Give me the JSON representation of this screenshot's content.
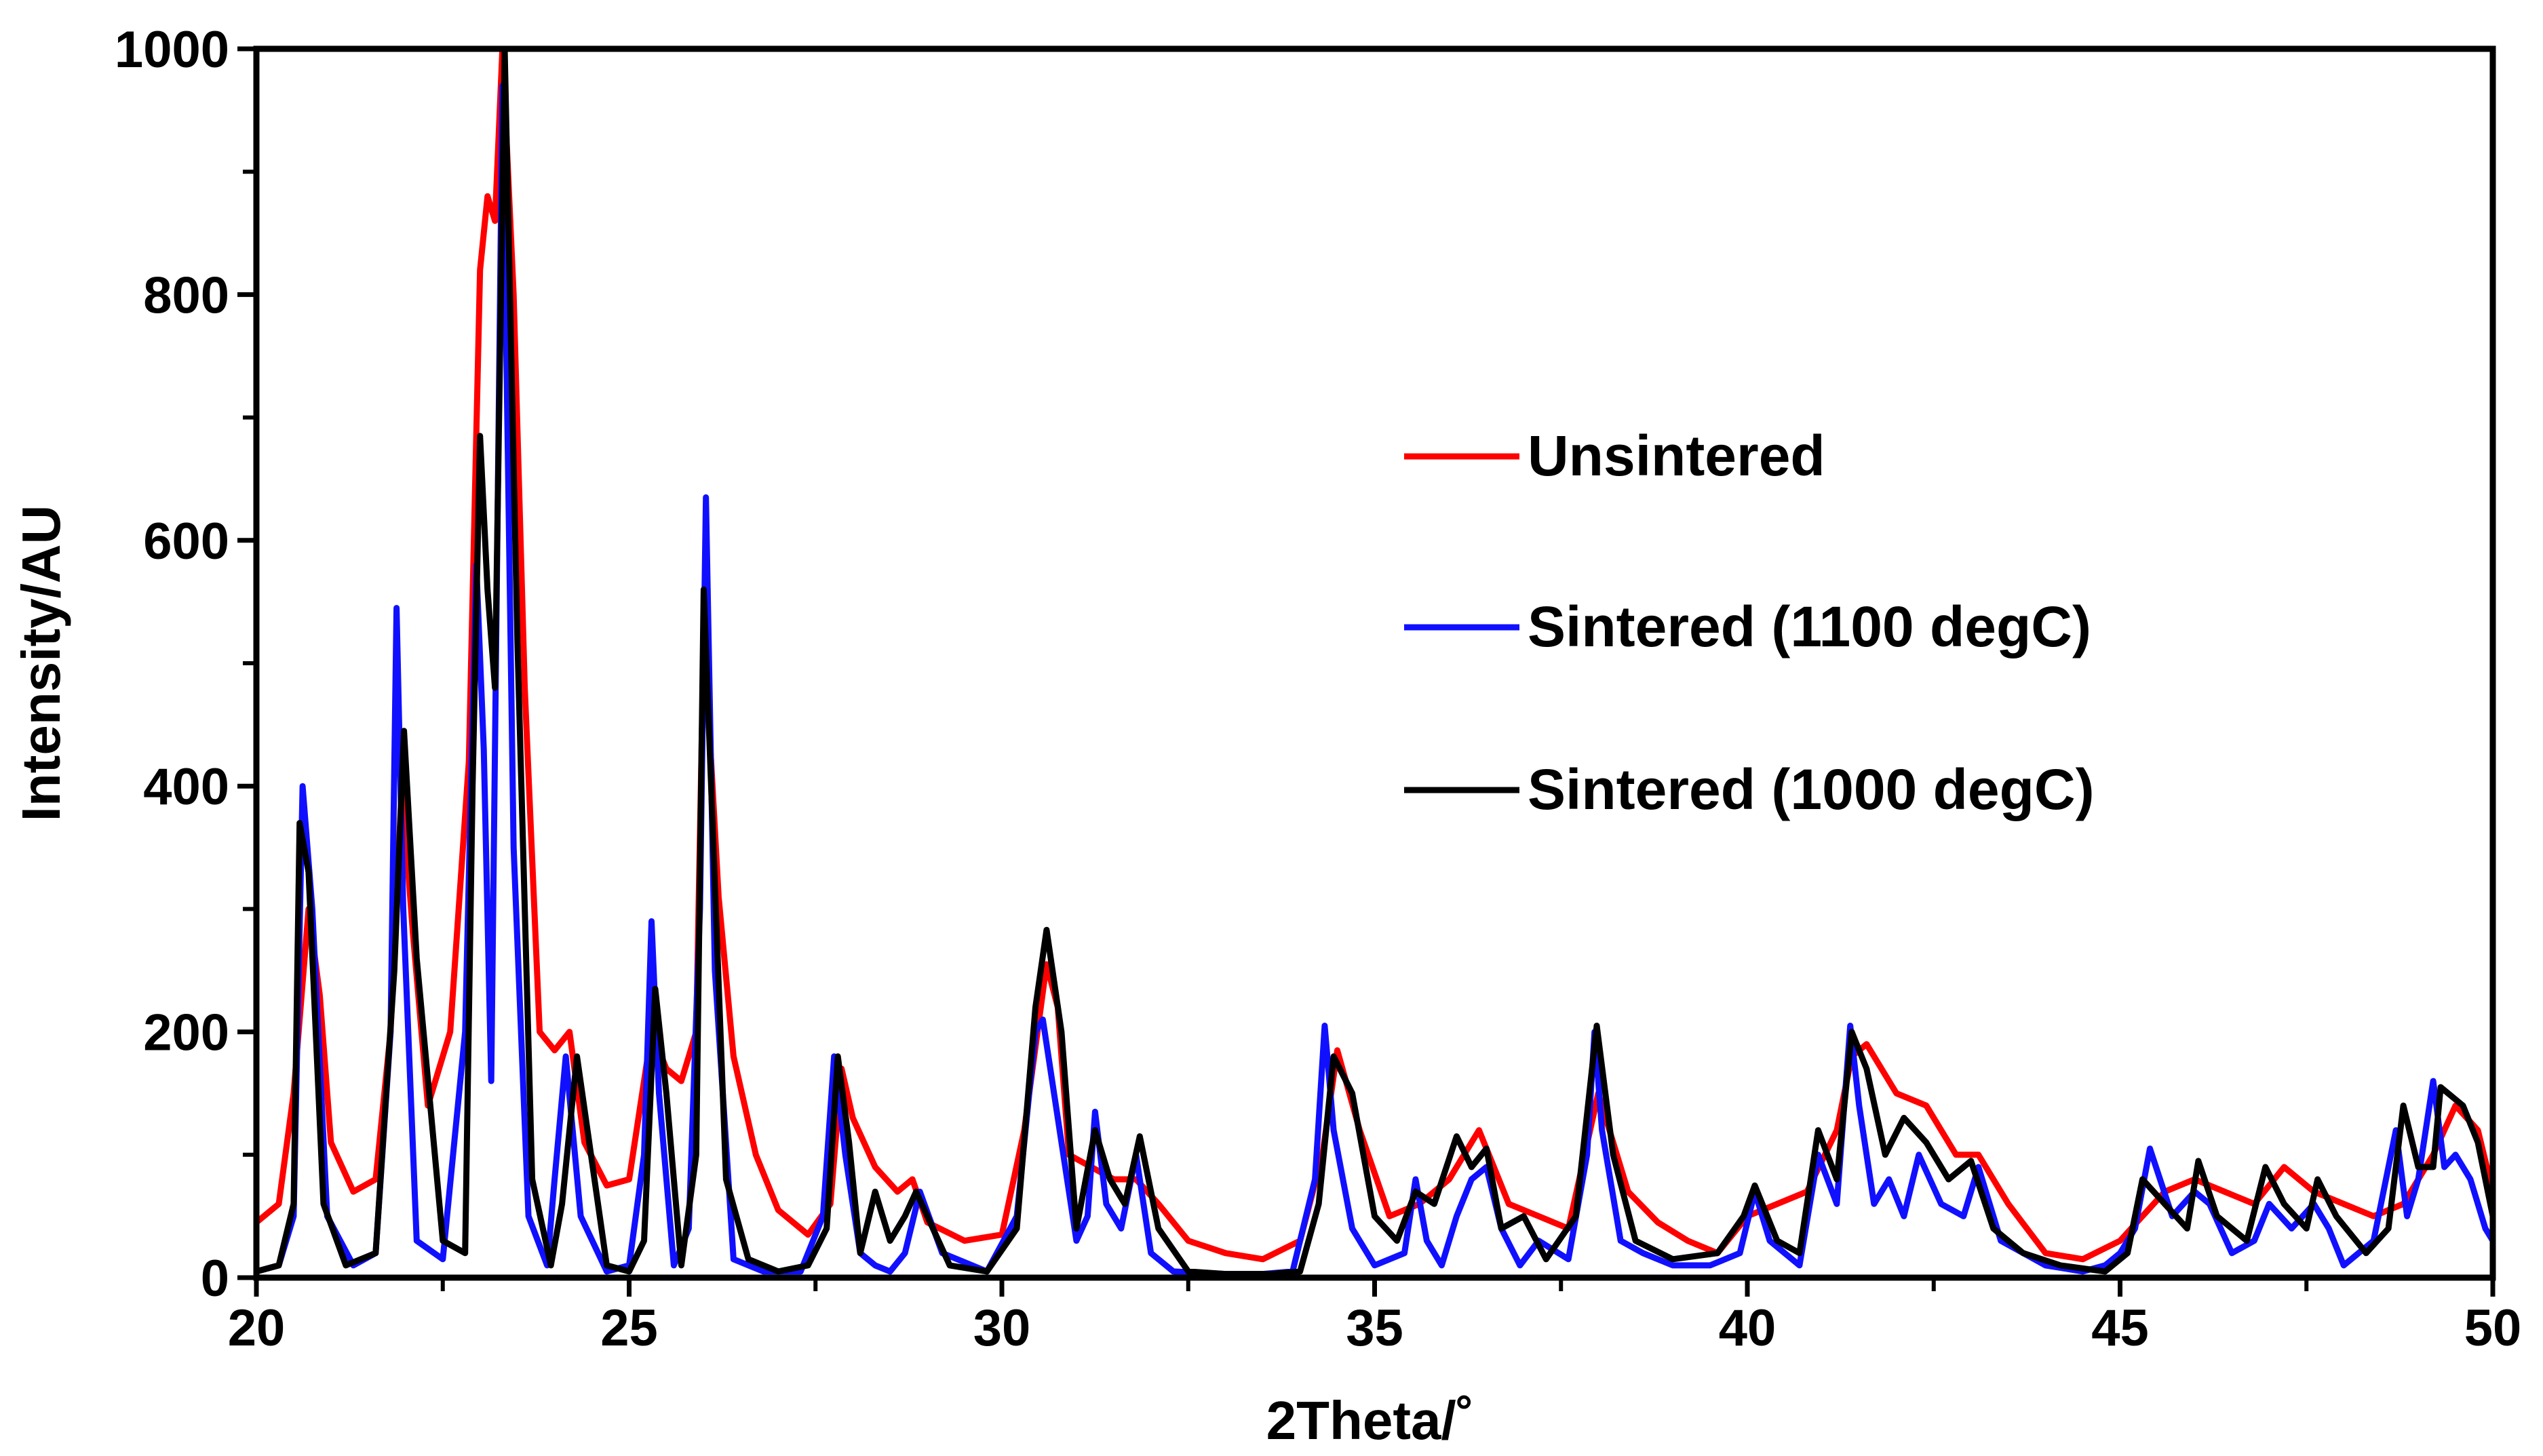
{
  "chart_data": {
    "type": "line",
    "title": "",
    "xlabel": "2Theta/˚",
    "ylabel": "Intensity/AU",
    "xlim": [
      20,
      50
    ],
    "ylim": [
      0,
      1000
    ],
    "xticks": [
      20,
      25,
      30,
      35,
      40,
      45,
      50
    ],
    "yticks": [
      0,
      200,
      400,
      600,
      800,
      1000
    ],
    "x_tick_labels": [
      "20",
      "25",
      "30",
      "35",
      "40",
      "45",
      "50"
    ],
    "y_tick_labels": [
      "0",
      "200",
      "400",
      "600",
      "800",
      "1000"
    ],
    "grid": false,
    "legend_position": "center-right",
    "series": [
      {
        "name": "Unsintered",
        "color": "#ff0000",
        "x": [
          20.0,
          20.3,
          20.5,
          20.7,
          20.85,
          21.0,
          21.3,
          21.6,
          21.8,
          21.95,
          22.1,
          22.3,
          22.6,
          22.85,
          23.0,
          23.1,
          23.2,
          23.3,
          23.45,
          23.6,
          23.8,
          24.0,
          24.2,
          24.4,
          24.7,
          25.0,
          25.3,
          25.5,
          25.7,
          25.9,
          26.0,
          26.1,
          26.2,
          26.4,
          26.7,
          27.0,
          27.4,
          27.7,
          27.85,
          28.0,
          28.3,
          28.6,
          28.8,
          29.0,
          29.5,
          30.0,
          30.3,
          30.6,
          30.75,
          30.9,
          31.2,
          31.5,
          31.8,
          32.1,
          32.5,
          33.0,
          33.5,
          34.0,
          34.3,
          34.5,
          34.8,
          35.2,
          35.6,
          36.0,
          36.4,
          36.8,
          37.2,
          37.6,
          38.0,
          38.4,
          38.8,
          39.2,
          39.6,
          40.0,
          40.4,
          40.8,
          41.2,
          41.4,
          41.6,
          42.0,
          42.4,
          42.8,
          43.1,
          43.5,
          44.0,
          44.5,
          45.0,
          45.3,
          45.6,
          46.0,
          46.4,
          46.8,
          47.2,
          47.6,
          48.0,
          48.4,
          48.8,
          49.2,
          49.5,
          49.8,
          50.0
        ],
        "y": [
          45,
          60,
          150,
          300,
          230,
          110,
          70,
          80,
          200,
          400,
          280,
          140,
          200,
          420,
          820,
          880,
          860,
          1000,
          800,
          480,
          200,
          185,
          200,
          110,
          75,
          80,
          200,
          170,
          160,
          200,
          520,
          420,
          310,
          180,
          100,
          55,
          35,
          60,
          170,
          130,
          90,
          70,
          80,
          45,
          30,
          35,
          120,
          255,
          220,
          100,
          90,
          80,
          80,
          60,
          30,
          20,
          15,
          30,
          100,
          185,
          120,
          50,
          60,
          80,
          120,
          60,
          50,
          40,
          150,
          70,
          45,
          30,
          20,
          50,
          60,
          70,
          120,
          180,
          190,
          150,
          140,
          100,
          100,
          60,
          20,
          15,
          30,
          50,
          70,
          80,
          70,
          60,
          90,
          70,
          60,
          50,
          60,
          100,
          140,
          120,
          70
        ]
      },
      {
        "name": "Sintered (1100 degC)",
        "color": "#1010ff",
        "x": [
          20.0,
          20.3,
          20.5,
          20.62,
          20.75,
          20.95,
          21.3,
          21.6,
          21.8,
          21.88,
          21.97,
          22.15,
          22.5,
          22.8,
          22.95,
          23.05,
          23.15,
          23.3,
          23.45,
          23.65,
          23.9,
          24.0,
          24.15,
          24.35,
          24.7,
          25.0,
          25.2,
          25.3,
          25.4,
          25.6,
          25.8,
          25.95,
          26.03,
          26.15,
          26.4,
          26.8,
          27.3,
          27.6,
          27.75,
          27.9,
          28.1,
          28.3,
          28.5,
          28.7,
          28.9,
          29.2,
          29.8,
          30.2,
          30.45,
          30.55,
          30.7,
          31.0,
          31.15,
          31.25,
          31.4,
          31.6,
          31.8,
          32.0,
          32.3,
          33.0,
          33.5,
          33.9,
          34.2,
          34.33,
          34.45,
          34.7,
          35.0,
          35.4,
          35.55,
          35.7,
          35.9,
          36.1,
          36.3,
          36.5,
          36.7,
          36.95,
          37.2,
          37.6,
          37.85,
          37.95,
          38.05,
          38.3,
          38.6,
          39.0,
          39.5,
          39.9,
          40.1,
          40.3,
          40.7,
          40.95,
          41.2,
          41.38,
          41.5,
          41.7,
          41.9,
          42.1,
          42.3,
          42.6,
          42.9,
          43.1,
          43.4,
          44.0,
          44.5,
          44.8,
          45.0,
          45.2,
          45.4,
          45.7,
          46.0,
          46.2,
          46.5,
          46.8,
          47.0,
          47.3,
          47.6,
          47.8,
          48.0,
          48.4,
          48.7,
          48.85,
          49.0,
          49.2,
          49.35,
          49.5,
          49.7,
          49.9,
          50.0
        ],
        "y": [
          5,
          10,
          50,
          400,
          300,
          50,
          10,
          20,
          200,
          545,
          300,
          30,
          15,
          200,
          580,
          430,
          160,
          970,
          350,
          50,
          10,
          80,
          180,
          50,
          5,
          10,
          100,
          290,
          150,
          10,
          40,
          300,
          635,
          250,
          15,
          5,
          5,
          50,
          180,
          100,
          20,
          10,
          5,
          20,
          70,
          20,
          5,
          50,
          200,
          210,
          150,
          30,
          50,
          135,
          60,
          40,
          100,
          20,
          5,
          3,
          3,
          5,
          80,
          205,
          120,
          40,
          10,
          20,
          80,
          30,
          10,
          50,
          80,
          90,
          40,
          10,
          30,
          15,
          100,
          200,
          120,
          30,
          20,
          10,
          10,
          20,
          70,
          30,
          10,
          100,
          60,
          205,
          140,
          60,
          80,
          50,
          100,
          60,
          50,
          90,
          30,
          10,
          5,
          10,
          20,
          40,
          105,
          50,
          70,
          60,
          20,
          30,
          60,
          40,
          60,
          40,
          10,
          30,
          120,
          50,
          80,
          160,
          90,
          100,
          80,
          40,
          30
        ]
      },
      {
        "name": "Sintered (1000 degC)",
        "color": "#000000",
        "x": [
          20.0,
          20.3,
          20.5,
          20.58,
          20.7,
          20.9,
          21.2,
          21.6,
          21.85,
          21.98,
          22.15,
          22.5,
          22.8,
          22.9,
          23.0,
          23.1,
          23.2,
          23.33,
          23.5,
          23.7,
          23.95,
          24.1,
          24.3,
          24.7,
          25.0,
          25.2,
          25.35,
          25.5,
          25.7,
          25.9,
          26.0,
          26.1,
          26.3,
          26.6,
          27.0,
          27.4,
          27.65,
          27.8,
          27.95,
          28.1,
          28.3,
          28.5,
          28.7,
          28.85,
          29.0,
          29.3,
          29.8,
          30.2,
          30.45,
          30.6,
          30.8,
          31.0,
          31.25,
          31.45,
          31.65,
          31.85,
          32.1,
          32.5,
          33.0,
          33.6,
          34.0,
          34.25,
          34.45,
          34.7,
          35.0,
          35.3,
          35.55,
          35.8,
          36.1,
          36.3,
          36.5,
          36.7,
          37.0,
          37.3,
          37.7,
          37.98,
          38.2,
          38.5,
          39.0,
          39.6,
          39.95,
          40.1,
          40.4,
          40.7,
          40.95,
          41.2,
          41.4,
          41.6,
          41.85,
          42.1,
          42.4,
          42.7,
          43.0,
          43.3,
          43.7,
          44.2,
          44.8,
          45.1,
          45.3,
          45.6,
          45.9,
          46.05,
          46.3,
          46.7,
          46.95,
          47.2,
          47.5,
          47.65,
          47.9,
          48.3,
          48.6,
          48.8,
          49.0,
          49.2,
          49.3,
          49.6,
          49.8,
          50.0
        ],
        "y": [
          5,
          10,
          60,
          370,
          330,
          60,
          10,
          20,
          250,
          445,
          260,
          30,
          20,
          400,
          685,
          560,
          480,
          1000,
          520,
          80,
          10,
          60,
          180,
          10,
          5,
          30,
          235,
          150,
          10,
          100,
          560,
          400,
          80,
          15,
          5,
          10,
          40,
          180,
          110,
          20,
          70,
          30,
          50,
          70,
          50,
          10,
          5,
          40,
          220,
          283,
          200,
          40,
          120,
          80,
          60,
          115,
          40,
          5,
          3,
          3,
          5,
          60,
          180,
          150,
          50,
          30,
          70,
          60,
          115,
          90,
          105,
          40,
          50,
          15,
          50,
          205,
          100,
          30,
          15,
          20,
          50,
          75,
          30,
          20,
          120,
          80,
          200,
          170,
          100,
          130,
          110,
          80,
          95,
          40,
          20,
          10,
          5,
          20,
          80,
          60,
          40,
          95,
          50,
          30,
          90,
          60,
          40,
          80,
          50,
          20,
          40,
          140,
          90,
          90,
          155,
          140,
          110,
          50
        ]
      }
    ]
  }
}
